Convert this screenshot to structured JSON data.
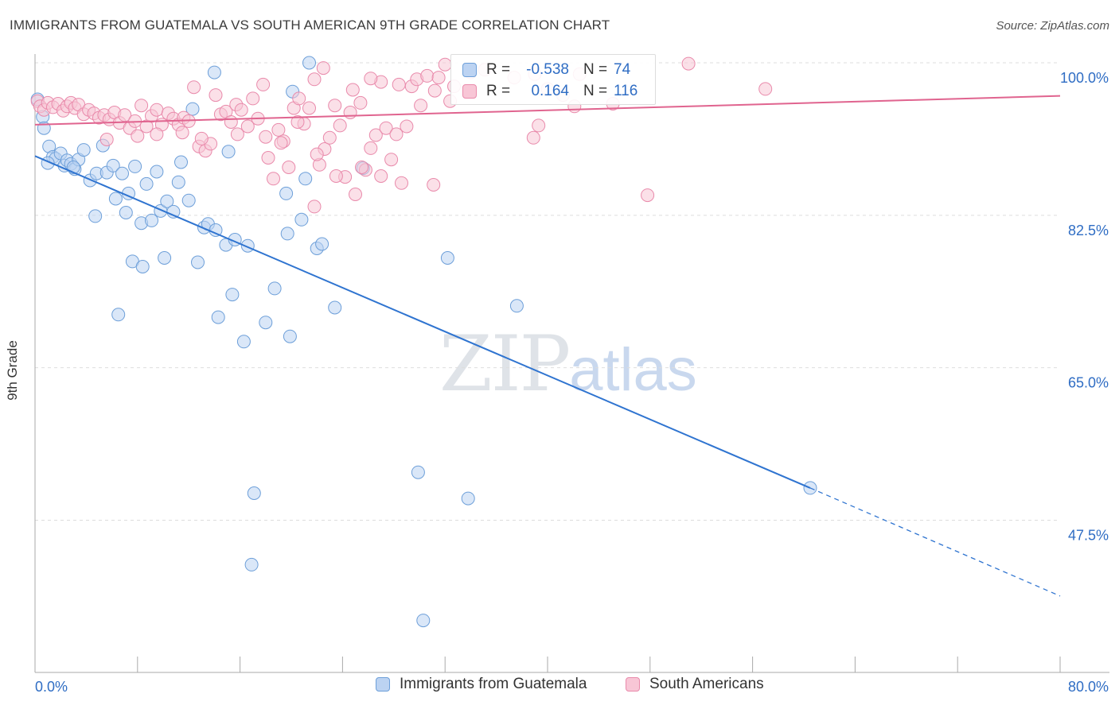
{
  "title": "IMMIGRANTS FROM GUATEMALA VS SOUTH AMERICAN 9TH GRADE CORRELATION CHART",
  "source": "Source: ZipAtlas.com",
  "watermark": {
    "zip": "ZIP",
    "atlas": "atlas"
  },
  "colors": {
    "blue_fill": "#bcd3f2",
    "blue_stroke": "#6d9fd9",
    "blue_line": "#2f74d0",
    "pink_fill": "#f8c6d6",
    "pink_stroke": "#e98aab",
    "pink_line": "#e0648f",
    "value_text": "#2f6dc4",
    "grid": "#dddddd"
  },
  "stats": [
    {
      "r_label": "R =",
      "r_value": "-0.538",
      "n_label": "N =",
      "n_value": "74"
    },
    {
      "r_label": "R =",
      "r_value": "0.164",
      "n_label": "N =",
      "n_value": "116"
    }
  ],
  "legend": [
    "Immigrants from Guatemala",
    "South Americans"
  ],
  "chart_data": {
    "type": "scatter",
    "title": "IMMIGRANTS FROM GUATEMALA VS SOUTH AMERICAN 9TH GRADE CORRELATION CHART",
    "xlabel": "",
    "ylabel": "9th Grade",
    "xlim": [
      0,
      80
    ],
    "ylim": [
      36,
      102
    ],
    "x_tick_labels": [
      "0.0%",
      "80.0%"
    ],
    "y_ticks": [
      47.5,
      65.0,
      82.5,
      100.0
    ],
    "y_tick_labels": [
      "47.5%",
      "65.0%",
      "82.5%",
      "100.0%"
    ],
    "grid": true,
    "legend_position": "bottom",
    "series": [
      {
        "name": "Immigrants from Guatemala",
        "R": -0.538,
        "N": 74,
        "trend": {
          "x0": 0,
          "y0": 89.3,
          "x1": 60.5,
          "y1": 51.2,
          "dash_to_x": 80,
          "dash_to_y": 38.8
        },
        "points": [
          [
            0.2,
            95.8
          ],
          [
            0.6,
            93.8
          ],
          [
            0.7,
            92.5
          ],
          [
            1.1,
            90.4
          ],
          [
            1.4,
            89.2
          ],
          [
            1.6,
            89.0
          ],
          [
            2.0,
            89.6
          ],
          [
            2.3,
            88.2
          ],
          [
            2.5,
            88.8
          ],
          [
            2.8,
            88.4
          ],
          [
            3.1,
            87.8
          ],
          [
            3.4,
            88.9
          ],
          [
            3.8,
            90.0
          ],
          [
            4.3,
            86.5
          ],
          [
            4.8,
            87.3
          ],
          [
            5.3,
            90.5
          ],
          [
            5.6,
            87.4
          ],
          [
            6.1,
            88.2
          ],
          [
            6.3,
            84.4
          ],
          [
            6.8,
            87.3
          ],
          [
            7.1,
            82.8
          ],
          [
            7.3,
            85.0
          ],
          [
            7.8,
            88.1
          ],
          [
            8.3,
            81.6
          ],
          [
            8.7,
            86.1
          ],
          [
            9.1,
            81.9
          ],
          [
            9.5,
            87.5
          ],
          [
            9.8,
            83.0
          ],
          [
            10.3,
            84.1
          ],
          [
            10.8,
            82.9
          ],
          [
            11.2,
            86.3
          ],
          [
            11.4,
            88.6
          ],
          [
            12.3,
            94.7
          ],
          [
            13.2,
            81.1
          ],
          [
            13.5,
            81.5
          ],
          [
            14.1,
            80.8
          ],
          [
            14.9,
            79.1
          ],
          [
            15.1,
            89.8
          ],
          [
            15.4,
            73.4
          ],
          [
            15.6,
            79.7
          ],
          [
            16.6,
            79.0
          ],
          [
            18.0,
            70.2
          ],
          [
            18.7,
            74.1
          ],
          [
            19.6,
            85.0
          ],
          [
            19.7,
            80.4
          ],
          [
            20.1,
            96.7
          ],
          [
            20.8,
            82.0
          ],
          [
            21.1,
            86.7
          ],
          [
            21.4,
            100.0
          ],
          [
            22.0,
            78.7
          ],
          [
            22.4,
            79.2
          ],
          [
            23.4,
            71.9
          ],
          [
            25.6,
            87.9
          ],
          [
            4.7,
            82.4
          ],
          [
            7.6,
            77.2
          ],
          [
            8.4,
            76.6
          ],
          [
            10.1,
            77.6
          ],
          [
            12.7,
            77.1
          ],
          [
            6.5,
            71.1
          ],
          [
            14.3,
            70.8
          ],
          [
            16.3,
            68.0
          ],
          [
            19.9,
            68.6
          ],
          [
            12.0,
            84.2
          ],
          [
            14.0,
            98.9
          ],
          [
            32.2,
            77.6
          ],
          [
            37.6,
            72.1
          ],
          [
            29.9,
            53.0
          ],
          [
            33.8,
            50.0
          ],
          [
            17.1,
            50.6
          ],
          [
            16.9,
            42.4
          ],
          [
            30.3,
            36.0
          ],
          [
            60.5,
            51.2
          ],
          [
            1.0,
            88.5
          ],
          [
            3.0,
            88.0
          ]
        ]
      },
      {
        "name": "South Americans",
        "R": 0.164,
        "N": 116,
        "trend": {
          "x0": 0,
          "y0": 92.9,
          "x1": 80,
          "y1": 96.2
        },
        "points": [
          [
            0.2,
            95.6
          ],
          [
            0.4,
            95.0
          ],
          [
            0.7,
            94.6
          ],
          [
            1.0,
            95.4
          ],
          [
            1.4,
            94.9
          ],
          [
            1.8,
            95.3
          ],
          [
            2.2,
            94.5
          ],
          [
            2.5,
            95.0
          ],
          [
            2.8,
            95.4
          ],
          [
            3.1,
            94.8
          ],
          [
            3.4,
            95.2
          ],
          [
            3.8,
            94.1
          ],
          [
            4.2,
            94.6
          ],
          [
            4.6,
            94.2
          ],
          [
            5.0,
            93.7
          ],
          [
            5.4,
            94.0
          ],
          [
            5.8,
            93.5
          ],
          [
            6.2,
            94.3
          ],
          [
            6.6,
            93.1
          ],
          [
            7.0,
            94.0
          ],
          [
            7.4,
            92.5
          ],
          [
            7.8,
            93.3
          ],
          [
            8.3,
            95.1
          ],
          [
            8.7,
            92.7
          ],
          [
            9.1,
            93.9
          ],
          [
            9.5,
            94.6
          ],
          [
            9.9,
            92.9
          ],
          [
            10.4,
            94.2
          ],
          [
            10.8,
            93.6
          ],
          [
            11.2,
            92.9
          ],
          [
            11.6,
            93.7
          ],
          [
            12.0,
            93.3
          ],
          [
            12.4,
            97.2
          ],
          [
            12.8,
            90.4
          ],
          [
            13.3,
            89.9
          ],
          [
            13.7,
            90.7
          ],
          [
            14.1,
            96.3
          ],
          [
            14.5,
            94.1
          ],
          [
            14.9,
            94.4
          ],
          [
            15.3,
            93.2
          ],
          [
            15.7,
            95.2
          ],
          [
            16.1,
            94.6
          ],
          [
            16.6,
            92.7
          ],
          [
            17.0,
            95.9
          ],
          [
            17.4,
            93.6
          ],
          [
            17.8,
            97.5
          ],
          [
            18.2,
            89.1
          ],
          [
            18.6,
            86.7
          ],
          [
            19.0,
            92.3
          ],
          [
            19.4,
            91.0
          ],
          [
            19.8,
            88.0
          ],
          [
            20.2,
            94.8
          ],
          [
            20.6,
            95.9
          ],
          [
            21.0,
            93.0
          ],
          [
            21.4,
            94.8
          ],
          [
            21.8,
            83.5
          ],
          [
            22.2,
            88.3
          ],
          [
            22.6,
            90.1
          ],
          [
            23.0,
            91.4
          ],
          [
            23.4,
            95.1
          ],
          [
            23.8,
            92.8
          ],
          [
            24.2,
            86.9
          ],
          [
            24.6,
            94.3
          ],
          [
            25.0,
            84.9
          ],
          [
            25.4,
            95.4
          ],
          [
            25.8,
            87.7
          ],
          [
            26.2,
            90.2
          ],
          [
            26.6,
            91.7
          ],
          [
            27.0,
            97.8
          ],
          [
            27.4,
            92.5
          ],
          [
            27.8,
            88.9
          ],
          [
            28.2,
            91.8
          ],
          [
            28.6,
            86.2
          ],
          [
            29.0,
            92.7
          ],
          [
            29.4,
            97.3
          ],
          [
            29.8,
            98.1
          ],
          [
            30.1,
            95.1
          ],
          [
            30.6,
            98.5
          ],
          [
            31.1,
            86.0
          ],
          [
            31.5,
            98.3
          ],
          [
            32.0,
            99.8
          ],
          [
            32.4,
            95.6
          ],
          [
            34.0,
            98.9
          ],
          [
            35.1,
            99.2
          ],
          [
            38.9,
            91.4
          ],
          [
            39.3,
            92.8
          ],
          [
            42.1,
            95.0
          ],
          [
            42.5,
            98.7
          ],
          [
            47.8,
            84.8
          ],
          [
            51.0,
            99.9
          ],
          [
            57.0,
            97.0
          ],
          [
            31.2,
            96.8
          ],
          [
            32.7,
            97.3
          ],
          [
            37.4,
            98.3
          ],
          [
            39.0,
            98.7
          ],
          [
            40.0,
            97.0
          ],
          [
            41.2,
            96.3
          ],
          [
            21.8,
            98.1
          ],
          [
            22.5,
            99.4
          ],
          [
            24.8,
            96.9
          ],
          [
            26.2,
            98.2
          ],
          [
            28.4,
            97.5
          ],
          [
            5.6,
            91.2
          ],
          [
            8.0,
            91.6
          ],
          [
            9.5,
            91.8
          ],
          [
            11.5,
            92.0
          ],
          [
            13.0,
            91.3
          ],
          [
            15.8,
            91.8
          ],
          [
            18.0,
            91.5
          ],
          [
            19.2,
            90.8
          ],
          [
            20.5,
            93.2
          ],
          [
            22.0,
            89.5
          ],
          [
            23.5,
            87.0
          ],
          [
            25.5,
            88.0
          ],
          [
            27.0,
            87.0
          ],
          [
            45.1,
            95.3
          ]
        ]
      }
    ]
  }
}
